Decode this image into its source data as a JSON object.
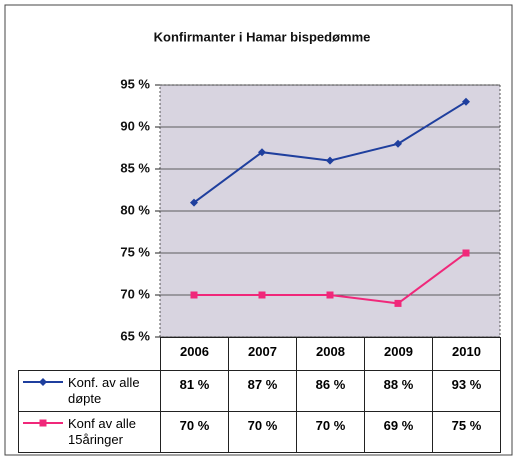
{
  "chart_data": {
    "type": "line",
    "title": "Konfirmanter i Hamar bispedømme",
    "categories": [
      "2006",
      "2007",
      "2008",
      "2009",
      "2010"
    ],
    "series": [
      {
        "name": "Konf. av alle døpte",
        "color": "#1f3f9e",
        "values": [
          81,
          87,
          86,
          88,
          93
        ],
        "value_labels": [
          "81 %",
          "87 %",
          "86 %",
          "88 %",
          "93 %"
        ]
      },
      {
        "name": "Konf av alle 15åringer",
        "color": "#f0287a",
        "values": [
          70,
          70,
          70,
          69,
          75
        ],
        "value_labels": [
          "70 %",
          "70 %",
          "70 %",
          "69 %",
          "75 %"
        ]
      }
    ],
    "ylim": [
      65,
      95
    ],
    "yticks": [
      {
        "value": 65,
        "label": "65 %"
      },
      {
        "value": 70,
        "label": "70 %"
      },
      {
        "value": 75,
        "label": "75 %"
      },
      {
        "value": 80,
        "label": "80 %"
      },
      {
        "value": 85,
        "label": "85 %"
      },
      {
        "value": 90,
        "label": "90 %"
      },
      {
        "value": 95,
        "label": "95 %"
      }
    ],
    "grid": true
  }
}
